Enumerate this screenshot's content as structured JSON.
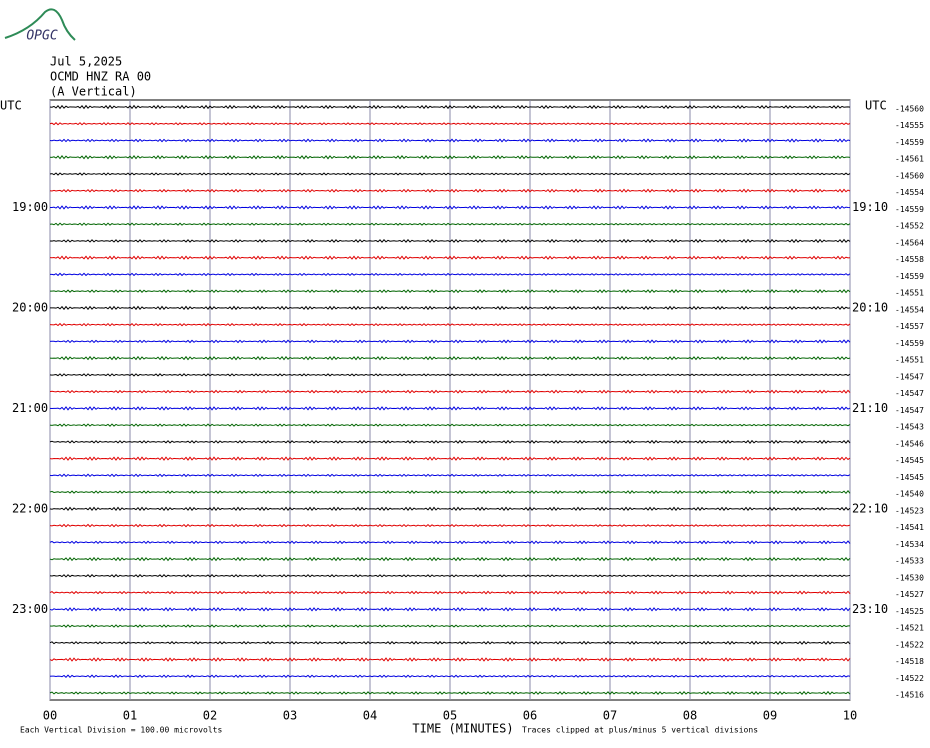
{
  "chart_data": {
    "type": "helicorder",
    "logo": "OPGC",
    "title": [
      "Jul 5,2025",
      "OCMD HNZ RA 00",
      "(A Vertical)"
    ],
    "left_header": "UTC",
    "right_header": "UTC",
    "left_time_labels": [
      "19:00",
      "20:00",
      "21:00",
      "22:00",
      "23:00"
    ],
    "right_time_labels": [
      "19:10",
      "20:10",
      "21:10",
      "22:10",
      "23:10"
    ],
    "x_label": "TIME (MINUTES)",
    "scale_note": "Each Vertical Division =  100.00 microvolts",
    "clip_note": "Traces clipped at plus/minus 5 vertical divisions",
    "xlim": [
      0,
      10
    ],
    "xticks": [
      {
        "value": 0,
        "label": "00"
      },
      {
        "value": 1,
        "label": "01"
      },
      {
        "value": 2,
        "label": "02"
      },
      {
        "value": 3,
        "label": "03"
      },
      {
        "value": 4,
        "label": "04"
      },
      {
        "value": 5,
        "label": "05"
      },
      {
        "value": 6,
        "label": "06"
      },
      {
        "value": 7,
        "label": "07"
      },
      {
        "value": 8,
        "label": "08"
      },
      {
        "value": 9,
        "label": "09"
      },
      {
        "value": 10,
        "label": "10"
      }
    ],
    "grid": true,
    "colors": [
      "#000000",
      "#e00000",
      "#0000e0",
      "#006400"
    ],
    "trace_offsets": [
      -14560,
      -14555,
      -14559,
      -14561,
      -14560,
      -14554,
      -14559,
      -14552,
      -14564,
      -14558,
      -14559,
      -14551,
      -14554,
      -14557,
      -14559,
      -14551,
      -14547,
      -14547,
      -14547,
      -14543,
      -14546,
      -14545,
      -14545,
      -14540,
      -14523,
      -14541,
      -14534,
      -14533,
      -14530,
      -14527,
      -14525,
      -14521,
      -14522,
      -14518,
      -14522,
      -14516
    ]
  }
}
